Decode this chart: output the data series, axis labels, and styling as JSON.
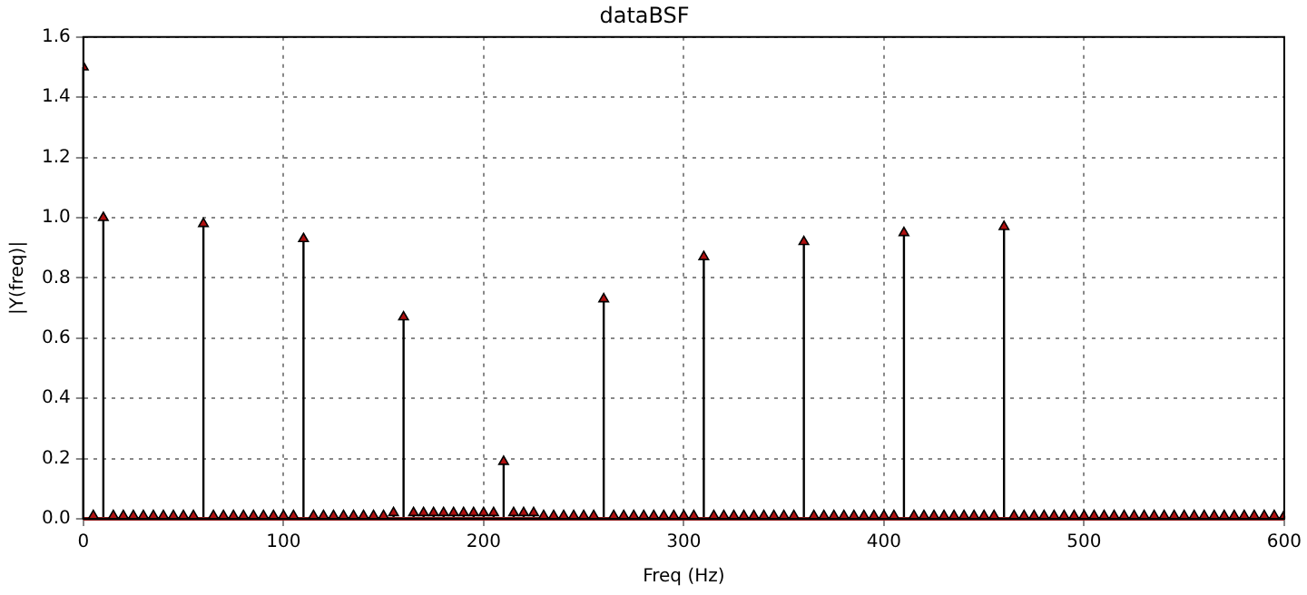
{
  "chart_data": {
    "type": "lollipop",
    "title": "dataBSF",
    "xlabel": "Freq (Hz)",
    "ylabel": "|Y(freq)|",
    "xlim": [
      0,
      600
    ],
    "xticks": [
      0,
      100,
      200,
      300,
      400,
      500,
      600
    ],
    "ylim": [
      0,
      1.6
    ],
    "yticks": [
      {
        "value": 0,
        "label": "0.0"
      },
      0.2,
      0.4,
      0.6,
      0.8,
      {
        "value": 1,
        "label": "1.0"
      },
      1.2,
      1.4,
      1.6
    ],
    "grid": true,
    "marker": "triangle",
    "legend": false,
    "ref_lines": [
      {
        "axis": "y",
        "value": 0,
        "color": "#8b1a1a"
      }
    ],
    "series": [
      {
        "color": "#b01010",
        "x": [
          0,
          5,
          10,
          15,
          20,
          25,
          30,
          35,
          40,
          45,
          50,
          55,
          60,
          65,
          70,
          75,
          80,
          85,
          90,
          95,
          100,
          105,
          110,
          115,
          120,
          125,
          130,
          135,
          140,
          145,
          150,
          155,
          160,
          165,
          170,
          175,
          180,
          185,
          190,
          195,
          200,
          205,
          210,
          215,
          220,
          225,
          230,
          235,
          240,
          245,
          250,
          255,
          260,
          265,
          270,
          275,
          280,
          285,
          290,
          295,
          300,
          305,
          310,
          315,
          320,
          325,
          330,
          335,
          340,
          345,
          350,
          355,
          360,
          365,
          370,
          375,
          380,
          385,
          390,
          395,
          400,
          405,
          410,
          415,
          420,
          425,
          430,
          435,
          440,
          445,
          450,
          455,
          460,
          465,
          470,
          475,
          480,
          485,
          490,
          495,
          500,
          505,
          510,
          515,
          520,
          525,
          530,
          535,
          540,
          545,
          550,
          555,
          560,
          565,
          570,
          575,
          580,
          585,
          590,
          595,
          600
        ],
        "values": [
          1.5,
          0.01,
          1.0,
          0.01,
          0.01,
          0.01,
          0.01,
          0.01,
          0.01,
          0.01,
          0.01,
          0.01,
          0.98,
          0.01,
          0.01,
          0.01,
          0.01,
          0.01,
          0.01,
          0.01,
          0.01,
          0.01,
          0.93,
          0.01,
          0.01,
          0.01,
          0.01,
          0.01,
          0.01,
          0.01,
          0.01,
          0.02,
          0.67,
          0.02,
          0.02,
          0.02,
          0.02,
          0.02,
          0.02,
          0.02,
          0.02,
          0.02,
          0.19,
          0.02,
          0.02,
          0.02,
          0.01,
          0.01,
          0.01,
          0.01,
          0.01,
          0.01,
          0.73,
          0.01,
          0.01,
          0.01,
          0.01,
          0.01,
          0.01,
          0.01,
          0.01,
          0.01,
          0.87,
          0.01,
          0.01,
          0.01,
          0.01,
          0.01,
          0.01,
          0.01,
          0.01,
          0.01,
          0.92,
          0.01,
          0.01,
          0.01,
          0.01,
          0.01,
          0.01,
          0.01,
          0.01,
          0.01,
          0.95,
          0.01,
          0.01,
          0.01,
          0.01,
          0.01,
          0.01,
          0.01,
          0.01,
          0.01,
          0.97,
          0.01,
          0.01,
          0.01,
          0.01,
          0.01,
          0.01,
          0.01,
          0.01,
          0.01,
          0.01,
          0.01,
          0.01,
          0.01,
          0.01,
          0.01,
          0.01,
          0.01,
          0.01,
          0.01,
          0.01,
          0.01,
          0.01,
          0.01,
          0.01,
          0.01,
          0.01,
          0.01,
          0.01
        ]
      }
    ]
  }
}
